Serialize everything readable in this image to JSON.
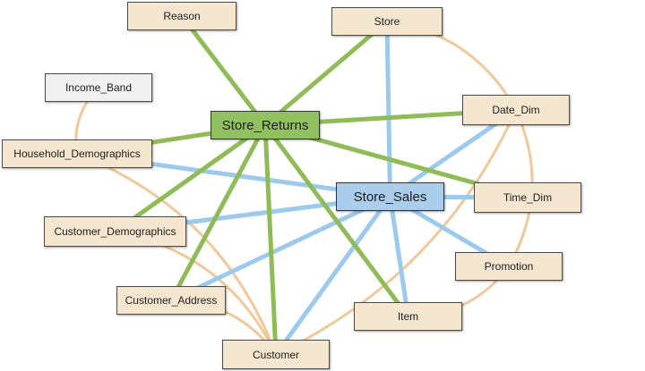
{
  "colors": {
    "returns_edge": "#8fbc57",
    "sales_edge": "#9ccaed",
    "dim_edge": "#f0c89a",
    "dimension_fill": "#f4e6cf",
    "income_fill": "#f0f0f0",
    "store_returns_fill": "#90c060",
    "store_sales_fill": "#a9cdea"
  },
  "nodes": {
    "reason": "Reason",
    "store": "Store",
    "income_band": "Income_Band",
    "store_returns": "Store_Returns",
    "date_dim": "Date_Dim",
    "household_demographics": "Household_Demographics",
    "store_sales": "Store_Sales",
    "time_dim": "Time_Dim",
    "customer_demographics": "Customer_Demographics",
    "promotion": "Promotion",
    "customer_address": "Customer_Address",
    "item": "Item",
    "customer": "Customer"
  },
  "edges": [
    {
      "from": "store_returns",
      "to": "reason",
      "kind": "returns"
    },
    {
      "from": "store_returns",
      "to": "store",
      "kind": "returns"
    },
    {
      "from": "store_returns",
      "to": "date_dim",
      "kind": "returns"
    },
    {
      "from": "store_returns",
      "to": "household_demographics",
      "kind": "returns"
    },
    {
      "from": "store_returns",
      "to": "time_dim",
      "kind": "returns"
    },
    {
      "from": "store_returns",
      "to": "customer_demographics",
      "kind": "returns"
    },
    {
      "from": "store_returns",
      "to": "customer_address",
      "kind": "returns"
    },
    {
      "from": "store_returns",
      "to": "item",
      "kind": "returns"
    },
    {
      "from": "store_returns",
      "to": "customer",
      "kind": "returns"
    },
    {
      "from": "store_sales",
      "to": "store",
      "kind": "sales"
    },
    {
      "from": "store_sales",
      "to": "date_dim",
      "kind": "sales"
    },
    {
      "from": "store_sales",
      "to": "household_demographics",
      "kind": "sales"
    },
    {
      "from": "store_sales",
      "to": "time_dim",
      "kind": "sales"
    },
    {
      "from": "store_sales",
      "to": "customer_demographics",
      "kind": "sales"
    },
    {
      "from": "store_sales",
      "to": "promotion",
      "kind": "sales"
    },
    {
      "from": "store_sales",
      "to": "customer_address",
      "kind": "sales"
    },
    {
      "from": "store_sales",
      "to": "item",
      "kind": "sales"
    },
    {
      "from": "store_sales",
      "to": "customer",
      "kind": "sales"
    },
    {
      "from": "store",
      "to": "date_dim",
      "kind": "dim"
    },
    {
      "from": "date_dim",
      "to": "customer",
      "kind": "dim"
    },
    {
      "from": "date_dim",
      "to": "promotion",
      "kind": "dim"
    },
    {
      "from": "promotion",
      "to": "item",
      "kind": "dim"
    },
    {
      "from": "household_demographics",
      "to": "income_band",
      "kind": "dim"
    },
    {
      "from": "household_demographics",
      "to": "customer",
      "kind": "dim"
    },
    {
      "from": "customer_demographics",
      "to": "customer",
      "kind": "dim"
    },
    {
      "from": "customer_address",
      "to": "customer",
      "kind": "dim"
    }
  ]
}
